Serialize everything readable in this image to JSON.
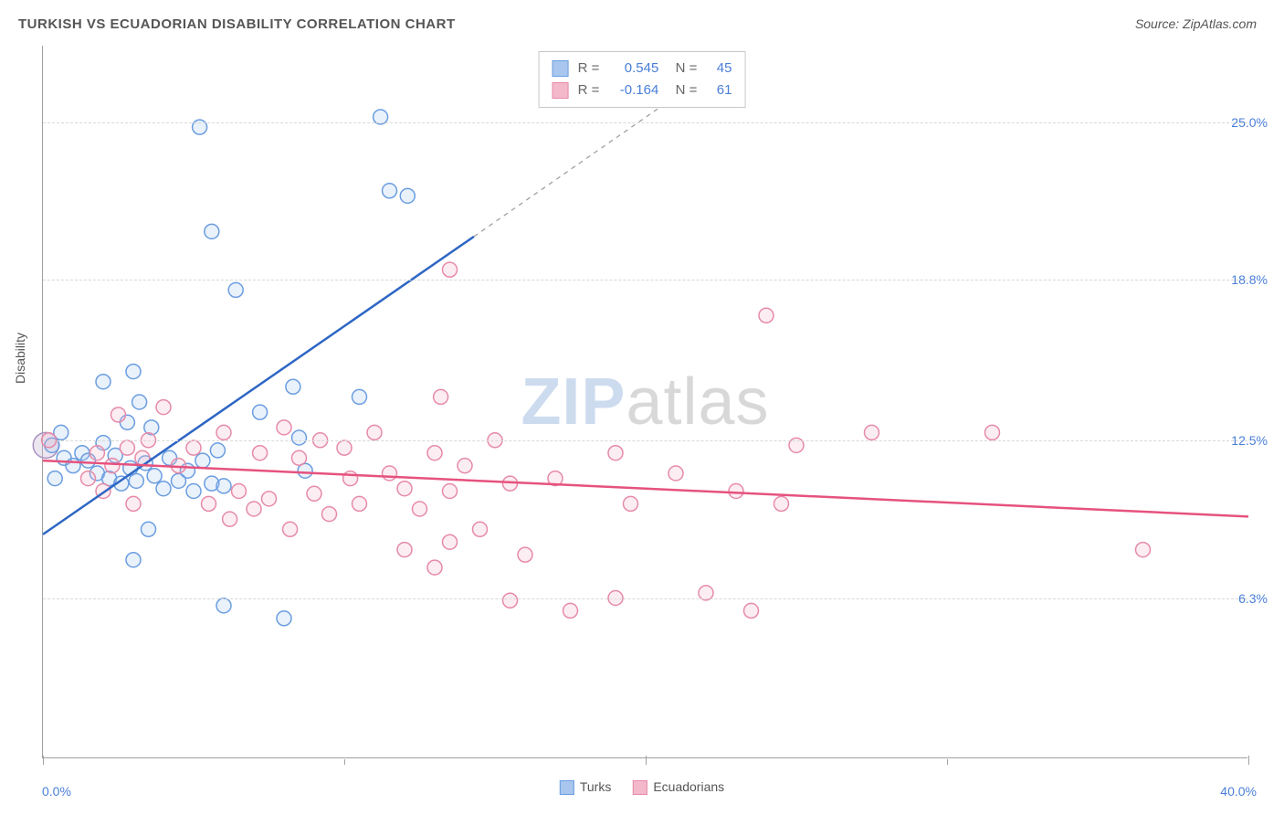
{
  "title": "TURKISH VS ECUADORIAN DISABILITY CORRELATION CHART",
  "source": "Source: ZipAtlas.com",
  "watermark_left": "ZIP",
  "watermark_right": "atlas",
  "chart": {
    "type": "scatter",
    "ylabel": "Disability",
    "xlim": [
      0,
      40
    ],
    "ylim": [
      0,
      28
    ],
    "x_min_label": "0.0%",
    "x_max_label": "40.0%",
    "yticks": [
      {
        "v": 6.3,
        "label": "6.3%"
      },
      {
        "v": 12.5,
        "label": "12.5%"
      },
      {
        "v": 18.8,
        "label": "18.8%"
      },
      {
        "v": 25.0,
        "label": "25.0%"
      }
    ],
    "xticks_major": [
      0,
      20,
      40
    ],
    "xticks_minor": [
      10,
      30
    ],
    "background_color": "#ffffff",
    "grid_color": "#d8d8d8",
    "axis_color": "#a0a0a0",
    "tick_label_color": "#4a7fd8",
    "marker_radius": 8,
    "marker_stroke_width": 1.5,
    "marker_fill_opacity": 0.25,
    "series": [
      {
        "name": "Turks",
        "color_stroke": "#6a9de0",
        "color_fill": "#a8c6ee",
        "regression": {
          "x1": 0,
          "y1": 8.8,
          "x2": 14.3,
          "y2": 20.5,
          "dashed_to_x": 20.5,
          "dashed_to_y": 25.6
        },
        "line_color": "#2e66c4",
        "stats": {
          "R": "0.545",
          "N": "45"
        },
        "points": [
          [
            5.2,
            24.8
          ],
          [
            5.6,
            20.7
          ],
          [
            11.2,
            25.2
          ],
          [
            11.5,
            22.3
          ],
          [
            12.1,
            22.1
          ],
          [
            6.4,
            18.4
          ],
          [
            3.2,
            14.0
          ],
          [
            3.0,
            15.2
          ],
          [
            7.2,
            13.6
          ],
          [
            8.3,
            14.6
          ],
          [
            10.5,
            14.2
          ],
          [
            2.8,
            13.2
          ],
          [
            3.6,
            13.0
          ],
          [
            0.6,
            12.8
          ],
          [
            0.3,
            12.3
          ],
          [
            0.7,
            11.8
          ],
          [
            1.0,
            11.5
          ],
          [
            1.3,
            12.0
          ],
          [
            1.5,
            11.7
          ],
          [
            1.8,
            11.2
          ],
          [
            2.0,
            12.4
          ],
          [
            2.2,
            11.0
          ],
          [
            2.4,
            11.9
          ],
          [
            2.6,
            10.8
          ],
          [
            2.9,
            11.4
          ],
          [
            3.1,
            10.9
          ],
          [
            3.4,
            11.6
          ],
          [
            3.7,
            11.1
          ],
          [
            4.0,
            10.6
          ],
          [
            4.2,
            11.8
          ],
          [
            4.5,
            10.9
          ],
          [
            4.8,
            11.3
          ],
          [
            5.0,
            10.5
          ],
          [
            5.3,
            11.7
          ],
          [
            5.6,
            10.8
          ],
          [
            8.7,
            11.3
          ],
          [
            8.5,
            12.6
          ],
          [
            6.0,
            10.7
          ],
          [
            5.8,
            12.1
          ],
          [
            0.4,
            11.0
          ],
          [
            2.0,
            14.8
          ],
          [
            6.0,
            6.0
          ],
          [
            8.0,
            5.5
          ],
          [
            3.0,
            7.8
          ],
          [
            3.5,
            9.0
          ]
        ]
      },
      {
        "name": "Ecuadorians",
        "color_stroke": "#e68aa8",
        "color_fill": "#f3b9cb",
        "regression": {
          "x1": 0,
          "y1": 11.7,
          "x2": 40,
          "y2": 9.5
        },
        "line_color": "#e6527e",
        "stats": {
          "R": "-0.164",
          "N": "61"
        },
        "points": [
          [
            13.5,
            19.2
          ],
          [
            24.0,
            17.4
          ],
          [
            2.5,
            13.5
          ],
          [
            4.0,
            13.8
          ],
          [
            5.0,
            12.2
          ],
          [
            5.5,
            10.0
          ],
          [
            6.0,
            12.8
          ],
          [
            6.2,
            9.4
          ],
          [
            6.5,
            10.5
          ],
          [
            7.0,
            9.8
          ],
          [
            7.2,
            12.0
          ],
          [
            7.5,
            10.2
          ],
          [
            8.0,
            13.0
          ],
          [
            8.2,
            9.0
          ],
          [
            8.5,
            11.8
          ],
          [
            9.0,
            10.4
          ],
          [
            9.2,
            12.5
          ],
          [
            9.5,
            9.6
          ],
          [
            10.0,
            12.2
          ],
          [
            10.2,
            11.0
          ],
          [
            10.5,
            10.0
          ],
          [
            11.0,
            12.8
          ],
          [
            11.5,
            11.2
          ],
          [
            12.0,
            10.6
          ],
          [
            12.0,
            8.2
          ],
          [
            12.5,
            9.8
          ],
          [
            13.0,
            12.0
          ],
          [
            13.0,
            7.5
          ],
          [
            13.5,
            10.5
          ],
          [
            13.5,
            8.5
          ],
          [
            14.0,
            11.5
          ],
          [
            14.5,
            9.0
          ],
          [
            15.0,
            12.5
          ],
          [
            15.5,
            10.8
          ],
          [
            15.5,
            6.2
          ],
          [
            16.0,
            8.0
          ],
          [
            17.0,
            11.0
          ],
          [
            17.5,
            5.8
          ],
          [
            19.0,
            12.0
          ],
          [
            19.0,
            6.3
          ],
          [
            19.5,
            10.0
          ],
          [
            21.0,
            11.2
          ],
          [
            22.0,
            6.5
          ],
          [
            23.0,
            10.5
          ],
          [
            23.5,
            5.8
          ],
          [
            24.5,
            10.0
          ],
          [
            25.0,
            12.3
          ],
          [
            27.5,
            12.8
          ],
          [
            31.5,
            12.8
          ],
          [
            36.5,
            8.2
          ],
          [
            13.2,
            14.2
          ],
          [
            1.5,
            11.0
          ],
          [
            1.8,
            12.0
          ],
          [
            2.0,
            10.5
          ],
          [
            2.3,
            11.5
          ],
          [
            2.8,
            12.2
          ],
          [
            3.0,
            10.0
          ],
          [
            3.3,
            11.8
          ],
          [
            3.5,
            12.5
          ],
          [
            4.5,
            11.5
          ],
          [
            0.2,
            12.5
          ]
        ]
      }
    ],
    "bottom_legend": [
      {
        "label": "Turks",
        "fill": "#a8c6ee",
        "stroke": "#6a9de0"
      },
      {
        "label": "Ecuadorians",
        "fill": "#f3b9cb",
        "stroke": "#e68aa8"
      }
    ]
  }
}
